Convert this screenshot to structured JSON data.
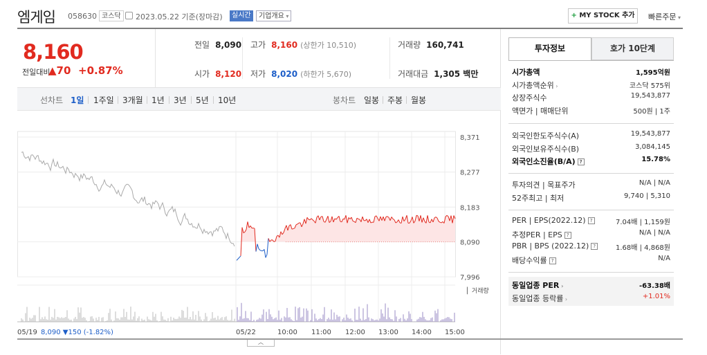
{
  "header": {
    "name": "엠게임",
    "code": "058630",
    "market": "코스닥",
    "date_basis": "2023.05.22 기준(장마감)",
    "realtime": "실시간",
    "company_overview": "기업개요",
    "mystock": "MY STOCK 추가",
    "mystock_plus": "+",
    "quick_order": "빠른주문"
  },
  "quote": {
    "price": "8,160",
    "change_label": "전일대비",
    "change_symbol": "▲",
    "change_value": "70",
    "change_rate": "+0.87%",
    "prev_close_label": "전일",
    "prev_close": "8,090",
    "high_label": "고가",
    "high": "8,160",
    "upper_limit": "(상한가 10,510)",
    "volume_label": "거래량",
    "volume": "160,741",
    "open_label": "시가",
    "open": "8,120",
    "low_label": "저가",
    "low": "8,020",
    "lower_limit": "(하한가 5,670)",
    "value_label": "거래대금",
    "value": "1,305 백만"
  },
  "chart_tabs": {
    "line_label": "선차트",
    "periods": [
      "1일",
      "1주일",
      "3개월",
      "1년",
      "3년",
      "5년",
      "10년"
    ],
    "candle_label": "봉차트",
    "candles": [
      "일봉",
      "주봉",
      "월봉"
    ],
    "active_period": "1일"
  },
  "chart_data": {
    "type": "line",
    "y_ticks": [
      "8,371",
      "8,277",
      "8,183",
      "8,090",
      "7,996"
    ],
    "ylim": [
      7996,
      8371
    ],
    "baseline": 8090,
    "volume_label": "거래량",
    "x_ticks": [
      "05/19",
      "05/22",
      "10:00",
      "11:00",
      "12:00",
      "13:00",
      "14:00",
      "15:00"
    ],
    "prev_day_summary": {
      "date": "05/19",
      "close": "8,090",
      "change": "▼150",
      "rate": "(-1.82%)"
    },
    "colors": {
      "prev_day": "#aaaaaa",
      "up": "#e12a1f",
      "down": "#1d5ec8",
      "fill": "#fde5e5",
      "volume_prev": "#bbbbbb",
      "volume_today": "#9a8bc4"
    }
  },
  "invest_tabs": {
    "info": "투자정보",
    "orderbook": "호가 10단계"
  },
  "invest_info": {
    "group1": [
      {
        "k": "시가총액",
        "v": "1,595억원",
        "bold": true
      },
      {
        "k": "시가총액순위",
        "v": "코스닥 575위",
        "arrow": true
      },
      {
        "k": "상장주식수",
        "v": "19,543,877"
      },
      {
        "k": "액면가 | 매매단위",
        "v": "500원 | 1주"
      }
    ],
    "group2": [
      {
        "k": "외국인한도주식수(A)",
        "v": "19,543,877"
      },
      {
        "k": "외국인보유주식수(B)",
        "v": "3,084,145"
      },
      {
        "k": "외국인소진율(B/A)",
        "v": "15.78%",
        "bold": true,
        "q": true
      }
    ],
    "group3": [
      {
        "k": "투자의견 | 목표주가",
        "v": "N/A | N/A"
      },
      {
        "k": "52주최고 | 최저",
        "v": "9,740 | 5,310"
      }
    ],
    "group4": [
      {
        "k": "PER | EPS(2022.12)",
        "v": "7.04배 | 1,159원",
        "q": true
      },
      {
        "k": "추정PER | EPS",
        "v": "N/A | N/A",
        "q": true
      },
      {
        "k": "PBR | BPS (2022.12)",
        "v": "1.68배 | 4,868원",
        "q": true
      },
      {
        "k": "배당수익률",
        "v": "N/A",
        "q": true
      }
    ],
    "group5": [
      {
        "k": "동일업종 PER",
        "v": "-63.38배",
        "bold": true,
        "arrow": true
      },
      {
        "k": "동일업종 등락률",
        "v": "+1.01%",
        "red": true,
        "arrow": true
      }
    ]
  }
}
